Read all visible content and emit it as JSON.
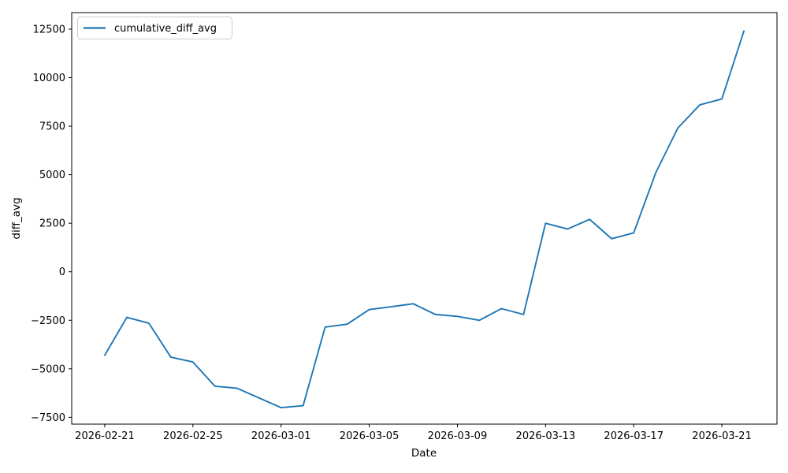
{
  "chart_data": {
    "type": "line",
    "title": "",
    "xlabel": "Date",
    "ylabel": "diff_avg",
    "grid": false,
    "legend_position": "upper left",
    "legend_entries": [
      "cumulative_diff_avg"
    ],
    "series": [
      {
        "name": "cumulative_diff_avg",
        "color": "#1f77b4",
        "x": [
          "2026-02-21",
          "2026-02-22",
          "2026-02-23",
          "2026-02-24",
          "2026-02-25",
          "2026-02-26",
          "2026-02-27",
          "2026-02-28",
          "2026-03-01",
          "2026-03-02",
          "2026-03-03",
          "2026-03-04",
          "2026-03-05",
          "2026-03-06",
          "2026-03-07",
          "2026-03-08",
          "2026-03-09",
          "2026-03-10",
          "2026-03-11",
          "2026-03-12",
          "2026-03-13",
          "2026-03-14",
          "2026-03-15",
          "2026-03-16",
          "2026-03-17",
          "2026-03-18",
          "2026-03-19",
          "2026-03-20",
          "2026-03-21",
          "2026-03-22"
        ],
        "values": [
          -4300,
          -2350,
          -2650,
          -4400,
          -4650,
          -5900,
          -6000,
          -6500,
          -7000,
          -6900,
          -2850,
          -2700,
          -1950,
          -1800,
          -1650,
          -2200,
          -2300,
          -2500,
          -1900,
          -2200,
          2500,
          2200,
          2700,
          1700,
          2000,
          5100,
          7400,
          8600,
          8900,
          12400
        ]
      }
    ],
    "x_tick_labels": [
      "2026-02-21",
      "2026-02-25",
      "2026-03-01",
      "2026-03-05",
      "2026-03-09",
      "2026-03-13",
      "2026-03-17",
      "2026-03-21"
    ],
    "y_ticks": [
      -7500,
      -5000,
      -2500,
      0,
      2500,
      5000,
      7500,
      10000,
      12500
    ],
    "xlim_days": [
      -1.5,
      30.5
    ],
    "ylim": [
      -7850,
      13350
    ]
  }
}
